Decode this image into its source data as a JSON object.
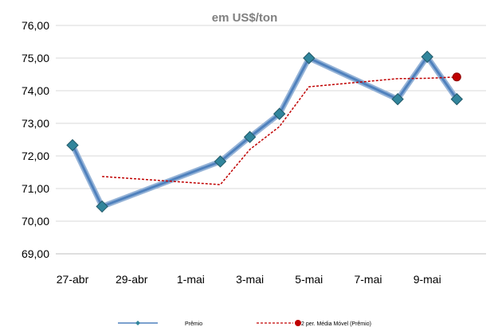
{
  "chart_data": {
    "type": "line",
    "title": "",
    "subtitle": "em US$/ton",
    "xlabel": "",
    "ylabel": "",
    "ylim": [
      69,
      76
    ],
    "y_ticks": [
      "69,00",
      "70,00",
      "71,00",
      "72,00",
      "73,00",
      "74,00",
      "75,00",
      "76,00"
    ],
    "x_ticks": [
      "27-abr",
      "29-abr",
      "1-mai",
      "3-mai",
      "5-mai",
      "7-mai",
      "9-mai"
    ],
    "x_domain": [
      0,
      14
    ],
    "grid": true,
    "legend": "bottom",
    "series": [
      {
        "name": "Prêmio",
        "color": "#4f81bd",
        "marker": "diamond",
        "x": [
          0,
          1,
          5,
          6,
          7,
          8,
          11,
          12,
          13
        ],
        "values": [
          72.33,
          70.45,
          71.83,
          72.58,
          73.29,
          75.0,
          73.74,
          75.04,
          73.74
        ]
      },
      {
        "name": "2 per. Média Móvel (Prêmio)",
        "color": "#c00000",
        "style": "dashed",
        "x": [
          1,
          5,
          6,
          7,
          8,
          11,
          12,
          13
        ],
        "values": [
          71.37,
          71.12,
          72.2,
          72.9,
          74.12,
          74.37,
          74.38,
          74.42
        ]
      }
    ]
  }
}
